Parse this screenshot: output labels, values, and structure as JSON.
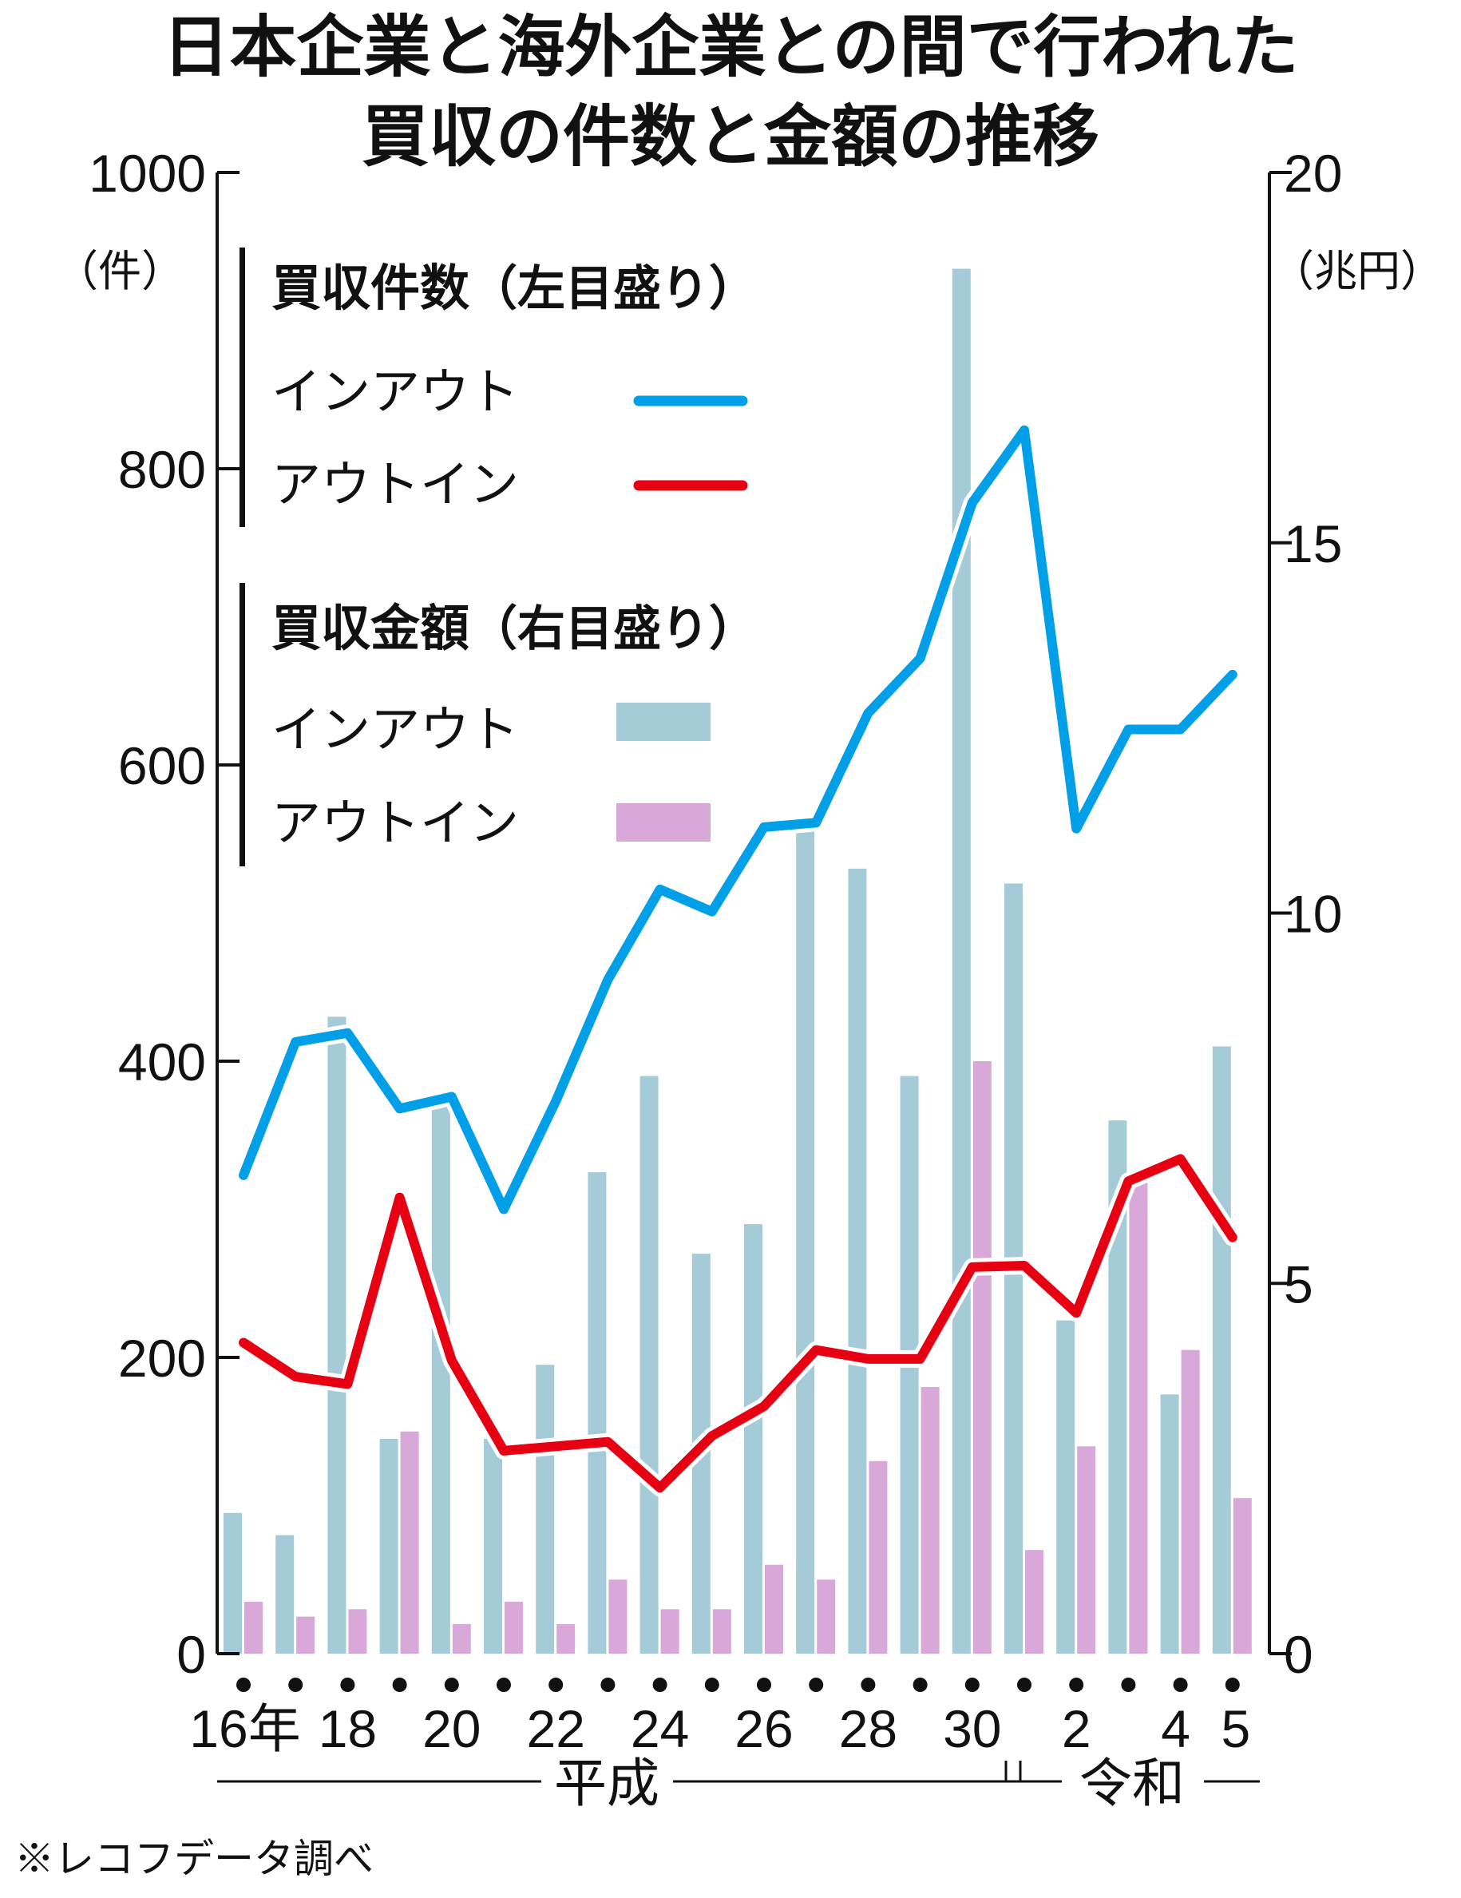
{
  "title": {
    "line1": "日本企業と海外企業との間で行われた",
    "line2": "買収の件数と金額の推移"
  },
  "colors": {
    "in_out_line": "#009fe8",
    "out_in_line": "#e60012",
    "in_out_bar": "#a5cad8",
    "out_in_bar": "#d8a8d8",
    "axis": "#111111"
  },
  "legend": {
    "count_heading": "買収件数",
    "count_scale": "（左目盛り）",
    "amount_heading": "買収金額",
    "amount_scale": "（右目盛り）",
    "in_out": "インアウト",
    "out_in": "アウトイン"
  },
  "eras": {
    "heisei": "平成",
    "reiwa": "令和"
  },
  "source": "※レコフデータ調べ",
  "chart_data": {
    "type": "bar+line",
    "title": "日本企業と海外企業との間で行われた買収の件数と金額の推移",
    "left_axis": {
      "unit": "（件）",
      "range": [
        0,
        1000
      ],
      "ticks": [
        "1000",
        "800",
        "600",
        "400",
        "200",
        "0"
      ]
    },
    "right_axis": {
      "unit": "（兆円）",
      "range": [
        0,
        20
      ],
      "ticks": [
        "20",
        "15",
        "10",
        "5",
        "0"
      ]
    },
    "x_tick_labels": [
      "16年",
      "18",
      "20",
      "22",
      "24",
      "26",
      "28",
      "30",
      "2",
      "4",
      "5"
    ],
    "categories": [
      "平成16",
      "平成17",
      "平成18",
      "平成19",
      "平成20",
      "平成21",
      "平成22",
      "平成23",
      "平成24",
      "平成25",
      "平成26",
      "平成27",
      "平成28",
      "平成29",
      "平成30",
      "令和元",
      "令和2",
      "令和3",
      "令和4",
      "令和5"
    ],
    "series": [
      {
        "name": "インアウト",
        "group": "買収件数",
        "axis": "left",
        "kind": "line",
        "values": [
          323,
          413,
          419,
          368,
          376,
          300,
          373,
          455,
          516,
          501,
          558,
          561,
          635,
          672,
          777,
          826,
          557,
          624,
          624,
          661
        ]
      },
      {
        "name": "アウトイン",
        "group": "買収件数",
        "axis": "left",
        "kind": "line",
        "values": [
          210,
          187,
          182,
          308,
          198,
          137,
          140,
          143,
          112,
          147,
          167,
          205,
          199,
          199,
          261,
          262,
          230,
          319,
          334,
          281
        ]
      },
      {
        "name": "インアウト",
        "group": "買収金額",
        "axis": "right",
        "kind": "bar",
        "values": [
          1.9,
          1.6,
          8.6,
          2.9,
          7.4,
          2.9,
          3.9,
          6.5,
          7.8,
          5.4,
          5.8,
          11.1,
          10.6,
          7.8,
          18.7,
          10.4,
          4.5,
          7.2,
          3.5,
          8.2
        ]
      },
      {
        "name": "アウトイン",
        "group": "買収金額",
        "axis": "right",
        "kind": "bar",
        "values": [
          0.7,
          0.5,
          0.6,
          3.0,
          0.4,
          0.7,
          0.4,
          1.0,
          0.6,
          0.6,
          1.2,
          1.0,
          2.6,
          3.6,
          8.0,
          1.4,
          2.8,
          6.4,
          4.1,
          2.1
        ]
      }
    ],
    "grid": false,
    "legend_position": "top-left"
  }
}
